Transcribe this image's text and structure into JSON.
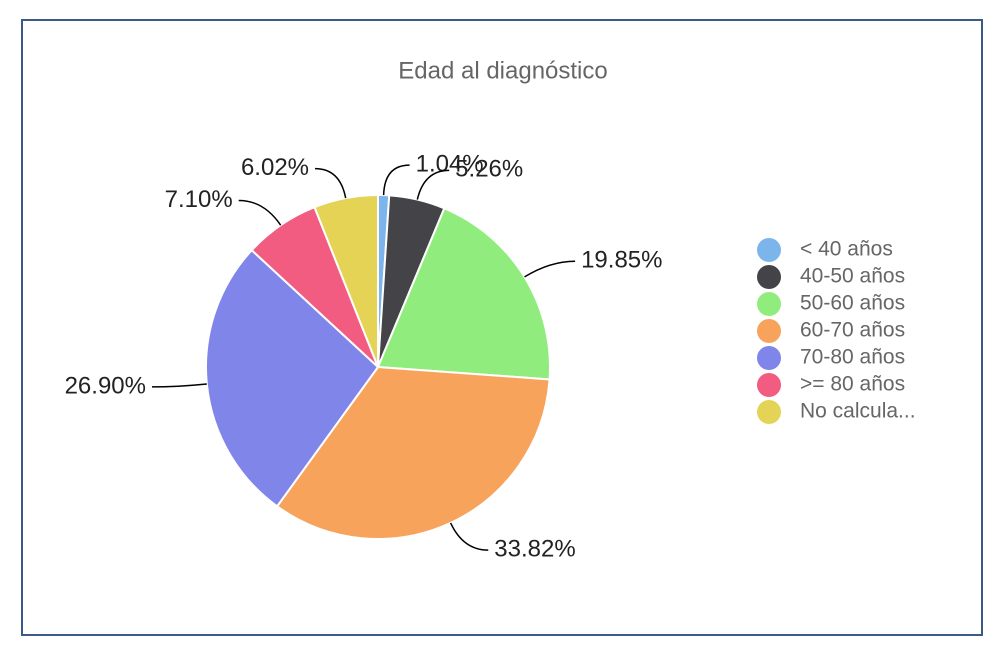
{
  "chart_data": {
    "type": "pie",
    "title": "Edad al diagnóstico",
    "categories": [
      "< 40 años",
      "40-50 años",
      "50-60 años",
      "60-70 años",
      "70-80 años",
      ">= 80 años",
      "No calcula..."
    ],
    "values": [
      1.04,
      5.26,
      19.85,
      33.82,
      26.9,
      7.1,
      6.02
    ],
    "value_labels": [
      "1.04%",
      "5.26%",
      "19.85%",
      "33.82%",
      "26.90%",
      "7.10%",
      "6.02%"
    ],
    "colors": [
      "#7cb5ec",
      "#434348",
      "#90ed7d",
      "#f7a35c",
      "#8085e9",
      "#f15c80",
      "#e4d354"
    ],
    "legend": "right"
  }
}
